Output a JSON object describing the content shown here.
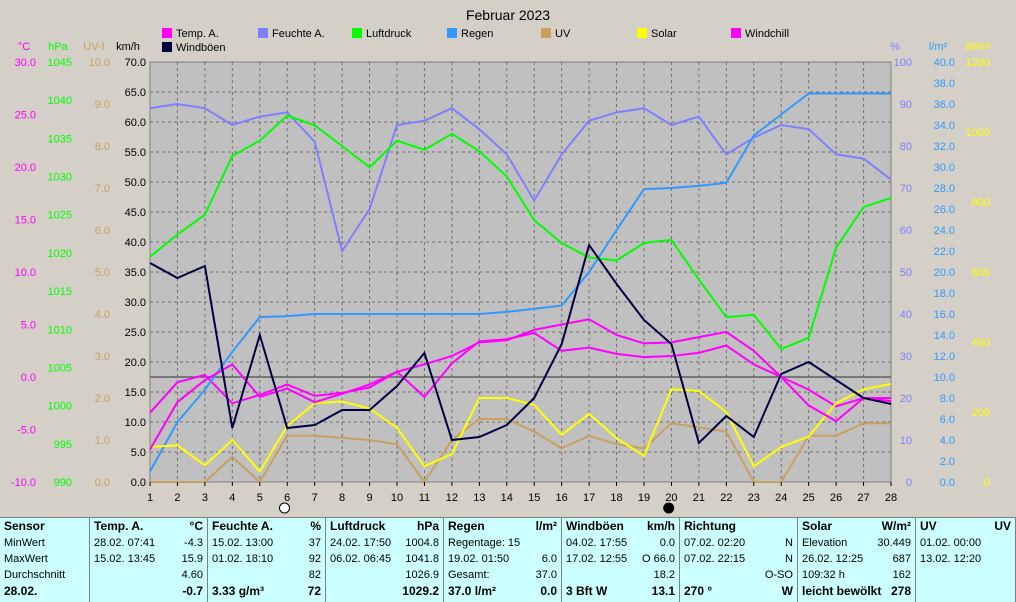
{
  "chart_data": {
    "type": "line",
    "title": "Februar 2023",
    "x": [
      1,
      2,
      3,
      4,
      5,
      6,
      7,
      8,
      9,
      10,
      11,
      12,
      13,
      14,
      15,
      16,
      17,
      18,
      19,
      20,
      21,
      22,
      23,
      24,
      25,
      26,
      27,
      28
    ],
    "x_ticks": [
      "1",
      "2",
      "3",
      "4",
      "5",
      "6",
      "7",
      "8",
      "9",
      "10",
      "11",
      "12",
      "13",
      "14",
      "15",
      "16",
      "17",
      "18",
      "19",
      "20",
      "21",
      "22",
      "23",
      "24",
      "25",
      "26",
      "27",
      "28"
    ],
    "legend": {
      "placement": "top"
    },
    "grid": true,
    "axes": {
      "temp": {
        "unit": "°C",
        "range": [
          -10,
          30
        ],
        "ticks": [
          "30.0",
          "25.0",
          "20.0",
          "15.0",
          "10.0",
          "5.0",
          "0.0",
          "-5.0",
          "-10.0"
        ],
        "color": "#ff00ff"
      },
      "pressure": {
        "unit": "hPa",
        "range": [
          990,
          1045
        ],
        "ticks": [
          "1045",
          "1040",
          "1035",
          "1030",
          "1025",
          "1020",
          "1015",
          "1010",
          "1005",
          "1000",
          "995",
          "990"
        ],
        "color": "#00ff00"
      },
      "uv": {
        "unit": "UV-I",
        "range": [
          0,
          10
        ],
        "ticks": [
          "10.0",
          "9.0",
          "8.0",
          "7.0",
          "6.0",
          "5.0",
          "4.0",
          "3.0",
          "2.0",
          "1.0",
          "0.0"
        ],
        "color": "#c8a060"
      },
      "wind": {
        "unit": "km/h",
        "range": [
          0,
          70
        ],
        "ticks": [
          "70.0",
          "65.0",
          "60.0",
          "55.0",
          "50.0",
          "45.0",
          "40.0",
          "35.0",
          "30.0",
          "25.0",
          "20.0",
          "15.0",
          "10.0",
          "5.0",
          "0.0"
        ],
        "color": "#000000"
      },
      "humidity": {
        "unit": "%",
        "range": [
          0,
          100
        ],
        "ticks": [
          "100",
          "90",
          "80",
          "70",
          "60",
          "50",
          "40",
          "30",
          "20",
          "10",
          "0"
        ],
        "color": "#8080ff"
      },
      "rain": {
        "unit": "l/m²",
        "range": [
          0,
          40
        ],
        "ticks": [
          "40.0",
          "38.0",
          "36.0",
          "34.0",
          "32.0",
          "30.0",
          "28.0",
          "26.0",
          "24.0",
          "22.0",
          "20.0",
          "18.0",
          "16.0",
          "14.0",
          "12.0",
          "10.0",
          "8.0",
          "6.0",
          "4.0",
          "2.0",
          "0.0"
        ],
        "color": "#3399ff"
      },
      "solar": {
        "unit": "W/m²",
        "range": [
          0,
          1200
        ],
        "ticks": [
          "1200",
          "1000",
          "800",
          "600",
          "400",
          "200",
          "0"
        ],
        "color": "#ffff00"
      }
    },
    "series": [
      {
        "name": "Temp. A.",
        "axis": "temp",
        "color": "#ff00ff",
        "values": [
          -3.4,
          -0.5,
          0.2,
          -2.5,
          -1.7,
          -0.7,
          -1.8,
          -1.5,
          -1.0,
          0.5,
          1.2,
          2.0,
          3.3,
          3.5,
          4.5,
          5.0,
          5.5,
          4.0,
          3.2,
          3.3,
          3.8,
          4.3,
          2.5,
          0.0,
          -1.2,
          -2.8,
          -2.0,
          -2.0
        ]
      },
      {
        "name": "Feuchte A.",
        "axis": "humidity",
        "color": "#8080ff",
        "values": [
          89,
          90,
          89,
          85,
          87,
          88,
          81,
          55,
          65,
          85,
          86,
          89,
          84,
          78,
          67,
          78,
          86,
          88,
          89,
          85,
          87,
          78,
          82,
          85,
          84,
          78,
          77,
          72
        ]
      },
      {
        "name": "Luftdruck",
        "axis": "pressure",
        "color": "#00ff00",
        "values": [
          1019.5,
          1022.4,
          1025,
          1032.7,
          1034.7,
          1038,
          1036.7,
          1034,
          1031.2,
          1034.7,
          1033.5,
          1035.6,
          1033.3,
          1030,
          1024.3,
          1021.3,
          1019.4,
          1019,
          1021.3,
          1021.7,
          1016.5,
          1011.6,
          1011.9,
          1007.4,
          1008.9,
          1020.7,
          1026,
          1027.2
        ]
      },
      {
        "name": "Regen",
        "axis": "rain",
        "color": "#3399ff",
        "values": [
          1.0,
          5.7,
          8.8,
          12.4,
          15.7,
          15.8,
          16.0,
          16.0,
          16.0,
          16.0,
          16.0,
          16.0,
          16.0,
          16.2,
          16.5,
          16.8,
          20.0,
          24.0,
          27.9,
          28.0,
          28.2,
          28.5,
          33.0,
          35.0,
          37.0,
          37.0,
          37.0,
          37.0
        ]
      },
      {
        "name": "UV",
        "axis": "uv",
        "color": "#c8a060",
        "values": [
          0,
          0,
          0,
          0.6,
          0,
          1.1,
          1.1,
          1.05,
          1.0,
          0.9,
          0,
          1.0,
          1.5,
          1.5,
          1.2,
          0.8,
          1.1,
          0.9,
          0.8,
          1.4,
          1.3,
          1.2,
          0,
          0,
          1.1,
          1.1,
          1.4,
          1.4
        ]
      },
      {
        "name": "Solar",
        "axis": "solar",
        "color": "#ffff00",
        "values": [
          100,
          105,
          48,
          120,
          30,
          160,
          225,
          230,
          210,
          155,
          45,
          80,
          240,
          240,
          220,
          135,
          195,
          125,
          75,
          265,
          260,
          200,
          45,
          100,
          130,
          225,
          265,
          280
        ]
      },
      {
        "name": "Windchill",
        "axis": "temp",
        "color": "#ff00ff",
        "values": [
          -6.9,
          -2.4,
          -0.3,
          1.2,
          -1.9,
          -1.1,
          -2.4,
          -1.6,
          -0.7,
          0.5,
          -1.9,
          1.3,
          3.4,
          3.6,
          4.2,
          2.5,
          2.8,
          2.2,
          1.9,
          2.0,
          2.3,
          3.0,
          1.2,
          0.0,
          -2.7,
          -4.2,
          -2.0,
          -2.3
        ]
      },
      {
        "name": "Windböen",
        "axis": "wind",
        "color": "#000040",
        "values": [
          36.5,
          34,
          36,
          9,
          24.5,
          9,
          9.5,
          12,
          12,
          16,
          21.5,
          7,
          7.5,
          9.5,
          14,
          23,
          39.5,
          33,
          27,
          23,
          6.5,
          11,
          7.5,
          18,
          20,
          17,
          14,
          13
        ]
      }
    ],
    "bottom_icons": [
      {
        "day": 5.9,
        "type": "full-moon"
      },
      {
        "day": 19.9,
        "type": "new-moon"
      }
    ]
  },
  "stats": {
    "labels": {
      "header": "Sensor",
      "min": "MinWert",
      "max": "MaxWert",
      "avg": "Durchschnitt",
      "last": "28.02."
    },
    "columns": [
      {
        "title": "Temp. A.",
        "unit": "°C",
        "rows": [
          [
            "28.02.  07:41",
            "-4.3"
          ],
          [
            "15.02.  13:45",
            "15.9"
          ],
          [
            "",
            "4.60"
          ],
          [
            "",
            "-0.7"
          ]
        ]
      },
      {
        "title": "Feuchte A.",
        "unit": "%",
        "rows": [
          [
            "15.02.  13:00",
            "37"
          ],
          [
            "01.02.  18:10",
            "92"
          ],
          [
            "",
            "82"
          ],
          [
            "3.33 g/m³",
            "72"
          ]
        ]
      },
      {
        "title": "Luftdruck",
        "unit": "hPa",
        "rows": [
          [
            "24.02.  17:50",
            "1004.8"
          ],
          [
            "06.02.  06:45",
            "1041.8"
          ],
          [
            "",
            "1026.9"
          ],
          [
            "",
            "1029.2"
          ]
        ]
      },
      {
        "title": "Regen",
        "unit": "l/m²",
        "rows": [
          [
            "Regentage: 15",
            ""
          ],
          [
            "19.02.  01:50",
            "6.0"
          ],
          [
            "Gesamt:",
            "37.0"
          ],
          [
            "37.0 l/m²",
            "0.0"
          ]
        ]
      },
      {
        "title": "Windböen",
        "unit": "km/h",
        "rows": [
          [
            "04.02.  17:55",
            "0.0"
          ],
          [
            "17.02.  12:55",
            "O 66.0"
          ],
          [
            "",
            "18.2"
          ],
          [
            "3 Bft W",
            "13.1"
          ]
        ]
      },
      {
        "title": "Richtung",
        "unit": "",
        "rows": [
          [
            "07.02.  02:20",
            "N"
          ],
          [
            "07.02.  22:15",
            "N"
          ],
          [
            "",
            "O-SO"
          ],
          [
            "270 °",
            "W"
          ]
        ]
      },
      {
        "title": "Solar",
        "unit": "W/m²",
        "rows": [
          [
            "Elevation",
            "30.449"
          ],
          [
            "26.02.  12:25",
            "687"
          ],
          [
            "109:32 h",
            "162"
          ],
          [
            "leicht bewölkt",
            "278"
          ]
        ]
      },
      {
        "title": "UV",
        "unit": "UV",
        "rows": [
          [
            "01.02.  00:00",
            ""
          ],
          [
            "13.02.  12:20",
            ""
          ],
          [
            "",
            ""
          ],
          [
            "",
            ""
          ]
        ]
      }
    ]
  }
}
